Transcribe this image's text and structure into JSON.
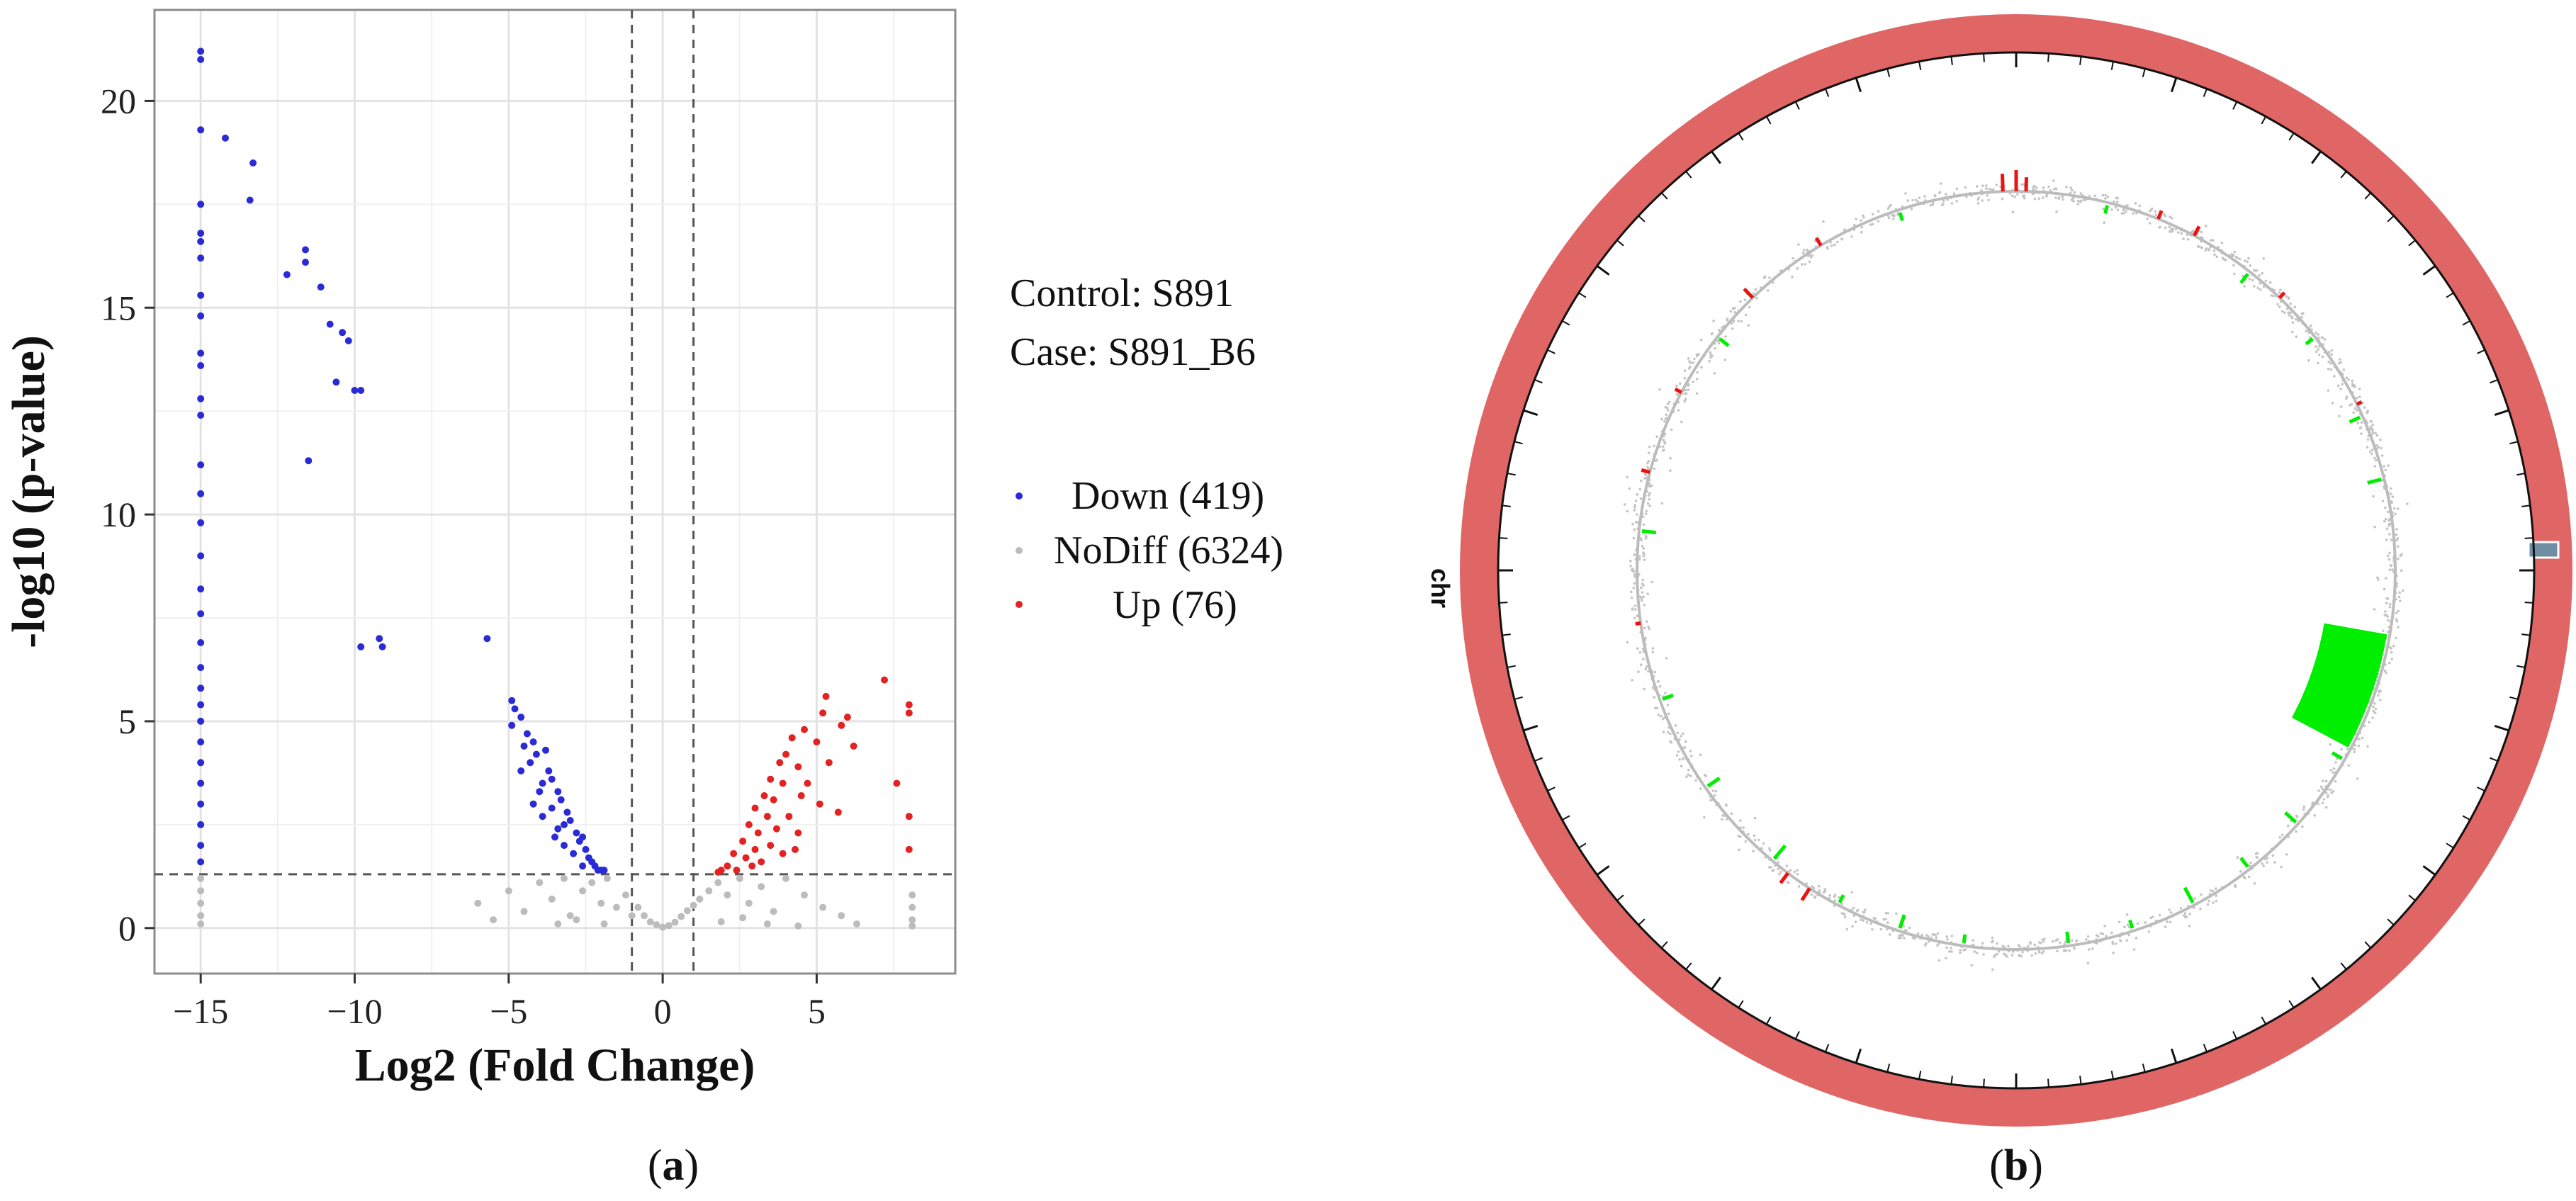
{
  "chart_data": [
    {
      "type": "scatter",
      "panel_label": "(a)",
      "panel_letter": "a",
      "xlabel": "Log2 (Fold Change)",
      "ylabel": "-log10 (p-value)",
      "xlim": [
        -16.5,
        9.5
      ],
      "ylim": [
        -1.1,
        22.2
      ],
      "x_ticks": [
        -15,
        -10,
        -5,
        0,
        5
      ],
      "y_ticks": [
        0,
        5,
        10,
        15,
        20
      ],
      "x_tick_labels": [
        "−15",
        "−10",
        "−5",
        "0",
        "5"
      ],
      "y_tick_labels": [
        "0",
        "5",
        "10",
        "15",
        "20"
      ],
      "grid": true,
      "thresholds": {
        "vertical_lines_at_x": [
          -1,
          1
        ],
        "horizontal_line_at_y": 1.3
      },
      "legend_title_lines": [
        "Control: S891",
        "Case: S891_B6"
      ],
      "legend_position": "right",
      "series": [
        {
          "name": "Down",
          "legend_label": "Down (419)",
          "count": 419,
          "color": "#2b2bd6",
          "points": [
            [
              -15,
              21.2
            ],
            [
              -15,
              21
            ],
            [
              -15,
              19.3
            ],
            [
              -14.2,
              19.1
            ],
            [
              -13.3,
              18.5
            ],
            [
              -13.4,
              17.6
            ],
            [
              -15,
              17.5
            ],
            [
              -15,
              16.8
            ],
            [
              -15,
              16.6
            ],
            [
              -15,
              16.2
            ],
            [
              -11.6,
              16.4
            ],
            [
              -11.6,
              16.1
            ],
            [
              -12.2,
              15.8
            ],
            [
              -11.1,
              15.5
            ],
            [
              -15,
              15.3
            ],
            [
              -15,
              14.8
            ],
            [
              -10.8,
              14.6
            ],
            [
              -10.4,
              14.4
            ],
            [
              -10.2,
              14.2
            ],
            [
              -15,
              13.9
            ],
            [
              -15,
              13.6
            ],
            [
              -10.6,
              13.2
            ],
            [
              -10,
              13
            ],
            [
              -9.8,
              13
            ],
            [
              -15,
              12.8
            ],
            [
              -15,
              12.4
            ],
            [
              -11.5,
              11.3
            ],
            [
              -15,
              11.2
            ],
            [
              -15,
              10.5
            ],
            [
              -15,
              9.8
            ],
            [
              -15,
              9
            ],
            [
              -15,
              8.2
            ],
            [
              -15,
              7.6
            ],
            [
              -5.7,
              7
            ],
            [
              -9.2,
              7
            ],
            [
              -9.1,
              6.8
            ],
            [
              -9.8,
              6.8
            ],
            [
              -15,
              6.9
            ],
            [
              -15,
              6.3
            ],
            [
              -15,
              5.8
            ],
            [
              -15,
              5.4
            ],
            [
              -15,
              5
            ],
            [
              -15,
              4.5
            ],
            [
              -15,
              4
            ],
            [
              -15,
              3.5
            ],
            [
              -15,
              3
            ],
            [
              -15,
              2.5
            ],
            [
              -15,
              2
            ],
            [
              -15,
              1.6
            ],
            [
              -4.9,
              5.5
            ],
            [
              -4.8,
              5.3
            ],
            [
              -4.6,
              5.1
            ],
            [
              -4.9,
              4.9
            ],
            [
              -4.4,
              4.7
            ],
            [
              -4.2,
              4.5
            ],
            [
              -4.5,
              4.4
            ],
            [
              -4.1,
              4.2
            ],
            [
              -3.8,
              4.3
            ],
            [
              -4.3,
              4
            ],
            [
              -3.7,
              3.8
            ],
            [
              -3.6,
              3.6
            ],
            [
              -3.9,
              3.5
            ],
            [
              -3.4,
              3.3
            ],
            [
              -3.3,
              3.1
            ],
            [
              -3.6,
              2.9
            ],
            [
              -3.1,
              2.8
            ],
            [
              -3,
              2.6
            ],
            [
              -3.4,
              2.4
            ],
            [
              -2.8,
              2.3
            ],
            [
              -2.7,
              2.1
            ],
            [
              -3.2,
              2
            ],
            [
              -2.5,
              1.9
            ],
            [
              -2.4,
              1.7
            ],
            [
              -2.6,
              1.5
            ],
            [
              -2.2,
              1.5
            ],
            [
              -2,
              1.4
            ],
            [
              -1.9,
              1.4
            ],
            [
              -4.2,
              3
            ],
            [
              -3.9,
              2.7
            ],
            [
              -3.5,
              2.2
            ],
            [
              -2.9,
              1.8
            ],
            [
              -2.3,
              1.6
            ],
            [
              -4.6,
              3.8
            ],
            [
              -4,
              3.3
            ],
            [
              -3.2,
              2.5
            ],
            [
              -2.6,
              2.2
            ],
            [
              -2.1,
              1.4
            ]
          ]
        },
        {
          "name": "NoDiff",
          "legend_label": "NoDiff (6324)",
          "count": 6324,
          "color": "#bcbcbc",
          "points": [
            [
              -15,
              1.2
            ],
            [
              -15,
              0.9
            ],
            [
              -15,
              0.6
            ],
            [
              -15,
              0.3
            ],
            [
              -15,
              0.1
            ],
            [
              8.1,
              0.8
            ],
            [
              8.1,
              0.5
            ],
            [
              8.1,
              0.2
            ],
            [
              8.1,
              0.05
            ],
            [
              -6,
              0.6
            ],
            [
              -5.5,
              0.2
            ],
            [
              -5,
              0.9
            ],
            [
              -4.5,
              0.4
            ],
            [
              -4,
              1.1
            ],
            [
              -3.6,
              0.7
            ],
            [
              -3.2,
              1.2
            ],
            [
              -3,
              0.3
            ],
            [
              -2.6,
              0.9
            ],
            [
              -2.3,
              1.1
            ],
            [
              -2,
              0.6
            ],
            [
              -1.8,
              1.2
            ],
            [
              -1.5,
              0.5
            ],
            [
              -1.2,
              0.8
            ],
            [
              -1,
              0.3
            ],
            [
              -0.8,
              0.5
            ],
            [
              -0.6,
              0.3
            ],
            [
              -0.4,
              0.15
            ],
            [
              -0.2,
              0.08
            ],
            [
              0,
              0.02
            ],
            [
              0.2,
              0.06
            ],
            [
              0.4,
              0.14
            ],
            [
              0.6,
              0.28
            ],
            [
              0.8,
              0.42
            ],
            [
              1,
              0.55
            ],
            [
              1.2,
              0.7
            ],
            [
              1.5,
              0.9
            ],
            [
              1.8,
              1.1
            ],
            [
              2.1,
              0.8
            ],
            [
              2.5,
              1.2
            ],
            [
              2.8,
              0.6
            ],
            [
              3.2,
              1
            ],
            [
              3.6,
              0.4
            ],
            [
              4,
              1.2
            ],
            [
              4.6,
              0.8
            ],
            [
              5.2,
              0.5
            ],
            [
              5.8,
              0.3
            ],
            [
              6.3,
              0.1
            ],
            [
              -3.4,
              0.1
            ],
            [
              -2.8,
              0.2
            ],
            [
              -1.9,
              0.1
            ],
            [
              1.9,
              0.15
            ],
            [
              2.6,
              0.25
            ],
            [
              3.4,
              0.1
            ],
            [
              4.4,
              0.05
            ]
          ]
        },
        {
          "name": "Up",
          "legend_label": "Up (76)",
          "count": 76,
          "color": "#e32222",
          "points": [
            [
              7.2,
              6
            ],
            [
              5.3,
              5.6
            ],
            [
              8,
              5.4
            ],
            [
              8,
              5.2
            ],
            [
              6,
              5.1
            ],
            [
              5.2,
              5.2
            ],
            [
              5.8,
              4.9
            ],
            [
              4.6,
              4.8
            ],
            [
              5,
              4.5
            ],
            [
              4.2,
              4.6
            ],
            [
              6.2,
              4.4
            ],
            [
              4,
              4.2
            ],
            [
              3.8,
              4
            ],
            [
              4.4,
              3.9
            ],
            [
              5.4,
              4
            ],
            [
              3.5,
              3.6
            ],
            [
              3.9,
              3.5
            ],
            [
              4.7,
              3.5
            ],
            [
              7.6,
              3.5
            ],
            [
              3.3,
              3.2
            ],
            [
              3.6,
              3.1
            ],
            [
              4.5,
              3.2
            ],
            [
              5.1,
              3
            ],
            [
              3,
              2.9
            ],
            [
              3.4,
              2.7
            ],
            [
              4.1,
              2.7
            ],
            [
              5.7,
              2.8
            ],
            [
              8,
              2.7
            ],
            [
              2.8,
              2.5
            ],
            [
              3.1,
              2.3
            ],
            [
              3.7,
              2.4
            ],
            [
              4.4,
              2.3
            ],
            [
              2.6,
              2.1
            ],
            [
              3,
              1.9
            ],
            [
              3.5,
              2
            ],
            [
              4.3,
              1.9
            ],
            [
              8,
              1.9
            ],
            [
              2.3,
              1.8
            ],
            [
              2.7,
              1.7
            ],
            [
              3.2,
              1.6
            ],
            [
              2.1,
              1.5
            ],
            [
              2.4,
              1.4
            ],
            [
              1.9,
              1.4
            ],
            [
              1.8,
              1.35
            ],
            [
              3.9,
              1.8
            ],
            [
              2.9,
              1.5
            ]
          ]
        }
      ]
    },
    {
      "type": "circos",
      "panel_label": "(b)",
      "panel_letter": "b",
      "ring_label": "chr",
      "ring_color": "#e06666",
      "small_segment_color": "#6f8ea3",
      "tracks": [
        {
          "name": "background",
          "color": "#bcbcbc"
        },
        {
          "name": "Down",
          "color": "#00ee00"
        },
        {
          "name": "Up",
          "color": "#ee1111"
        }
      ],
      "inner_radius_fraction": 0.64,
      "up_bars": [
        {
          "angle_deg": -2,
          "length": 0.1
        },
        {
          "angle_deg": 0,
          "length": 0.12
        },
        {
          "angle_deg": 1.5,
          "length": 0.08
        },
        {
          "angle_deg": 22,
          "length": 0.05
        },
        {
          "angle_deg": 28,
          "length": 0.06
        },
        {
          "angle_deg": 44,
          "length": 0.04
        },
        {
          "angle_deg": -31,
          "length": 0.05
        },
        {
          "angle_deg": -44,
          "length": 0.07
        },
        {
          "angle_deg": -62,
          "length": 0.04
        },
        {
          "angle_deg": -75,
          "length": 0.05
        },
        {
          "angle_deg": -98,
          "length": 0.03
        },
        {
          "angle_deg": 213,
          "length": 0.08
        },
        {
          "angle_deg": 217,
          "length": 0.07
        },
        {
          "angle_deg": 64,
          "length": 0.03
        }
      ],
      "down_bars": [
        {
          "angle_deg": 76,
          "length": 0.05
        },
        {
          "angle_deg": 66,
          "length": 0.04
        },
        {
          "angle_deg": 52,
          "length": 0.03
        },
        {
          "angle_deg": 38,
          "length": 0.04
        },
        {
          "angle_deg": 14,
          "length": 0.03
        },
        {
          "angle_deg": -18,
          "length": 0.03
        },
        {
          "angle_deg": -52,
          "length": 0.04
        },
        {
          "angle_deg": -84,
          "length": 0.05
        },
        {
          "angle_deg": -110,
          "length": 0.04
        },
        {
          "angle_deg": -125,
          "length": 0.05
        },
        {
          "angle_deg": -140,
          "length": 0.06
        },
        {
          "angle_deg": -152,
          "length": 0.03
        },
        {
          "angle_deg": -162,
          "length": 0.04
        },
        {
          "angle_deg": 132,
          "length": 0.05
        },
        {
          "angle_deg": 142,
          "length": 0.04
        },
        {
          "angle_deg": 152,
          "length": 0.06
        },
        {
          "angle_deg": 162,
          "length": 0.03
        },
        {
          "angle_deg": 172,
          "length": 0.04
        },
        {
          "angle_deg": 188,
          "length": 0.03
        },
        {
          "angle_deg": 198,
          "length": 0.05
        },
        {
          "angle_deg": 120,
          "length": 0.04
        },
        {
          "angle_deg": 110,
          "length": 0.03
        }
      ],
      "down_block": {
        "start_deg": 100,
        "end_deg": 118,
        "length": 0.09
      }
    }
  ]
}
